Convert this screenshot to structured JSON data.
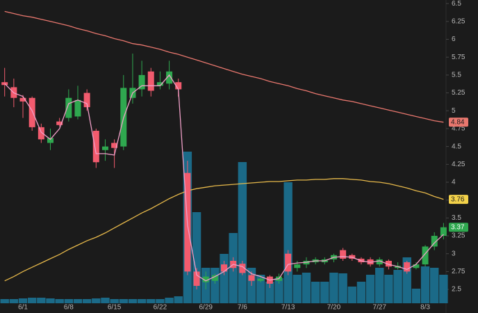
{
  "chart_data": {
    "type": "candlestick",
    "categories": [
      null,
      null,
      "6/1",
      null,
      null,
      null,
      null,
      "6/8",
      null,
      null,
      null,
      null,
      "6/15",
      null,
      null,
      null,
      null,
      "6/22",
      null,
      null,
      null,
      null,
      "6/29",
      null,
      null,
      null,
      "7/6",
      null,
      null,
      null,
      null,
      "7/13",
      null,
      null,
      null,
      null,
      "7/20",
      null,
      null,
      null,
      null,
      "7/27",
      null,
      null,
      null,
      null,
      "8/3",
      null,
      null
    ],
    "open": [
      5.4,
      5.33,
      5.18,
      5.18,
      4.77,
      4.55,
      4.85,
      4.9,
      4.92,
      5.25,
      4.72,
      4.45,
      4.55,
      4.5,
      5.18,
      5.3,
      5.55,
      5.35,
      5.38,
      5.4,
      4.13,
      2.75,
      2.6,
      2.62,
      2.85,
      2.9,
      2.86,
      2.7,
      2.62,
      2.68,
      2.62,
      3.0,
      2.8,
      2.85,
      2.88,
      2.88,
      2.92,
      3.05,
      2.98,
      2.93,
      2.92,
      2.85,
      2.9,
      2.8,
      2.88,
      2.8,
      2.85,
      3.1,
      3.25
    ],
    "high": [
      5.6,
      5.45,
      5.22,
      5.2,
      4.82,
      4.75,
      4.9,
      5.3,
      5.35,
      5.3,
      4.75,
      4.6,
      4.6,
      5.5,
      5.8,
      5.7,
      5.6,
      5.55,
      5.7,
      5.45,
      4.3,
      2.8,
      2.75,
      2.72,
      2.9,
      2.95,
      2.9,
      2.75,
      2.7,
      2.7,
      2.72,
      3.05,
      2.9,
      2.95,
      2.95,
      2.95,
      3.0,
      3.08,
      3.0,
      2.95,
      2.95,
      2.95,
      2.92,
      2.88,
      2.9,
      2.88,
      3.12,
      3.3,
      3.43
    ],
    "low": [
      5.2,
      5.05,
      4.9,
      4.72,
      4.55,
      4.45,
      4.78,
      4.85,
      4.88,
      5.0,
      4.2,
      4.3,
      4.2,
      4.45,
      5.1,
      5.2,
      5.2,
      5.3,
      5.3,
      5.2,
      2.7,
      2.5,
      2.5,
      2.58,
      2.7,
      2.75,
      2.7,
      2.55,
      2.6,
      2.52,
      2.58,
      2.7,
      2.75,
      2.8,
      2.85,
      2.85,
      2.88,
      2.9,
      2.9,
      2.85,
      2.82,
      2.82,
      2.78,
      2.78,
      2.72,
      2.78,
      2.82,
      3.05,
      3.2
    ],
    "close": [
      5.36,
      5.18,
      5.13,
      4.77,
      4.6,
      4.62,
      4.8,
      5.18,
      5.15,
      5.05,
      4.28,
      4.5,
      4.48,
      5.32,
      5.32,
      5.5,
      5.28,
      5.4,
      5.55,
      5.3,
      2.75,
      2.55,
      2.68,
      2.7,
      2.75,
      2.8,
      2.73,
      2.62,
      2.65,
      2.58,
      2.68,
      2.75,
      2.85,
      2.9,
      2.92,
      2.92,
      2.98,
      2.93,
      2.93,
      2.88,
      2.85,
      2.92,
      2.82,
      2.83,
      2.75,
      2.85,
      3.1,
      3.25,
      3.37
    ],
    "up_color": "#2fa84f",
    "down_color": "#f25b6e",
    "volume": {
      "color": "#1b6a88",
      "values": [
        6,
        6,
        7,
        8,
        8,
        7,
        6,
        6,
        6,
        6,
        7,
        8,
        6,
        6,
        6,
        6,
        6,
        6,
        8,
        10,
        218,
        131,
        51,
        51,
        71,
        101,
        203,
        51,
        41,
        31,
        36,
        174,
        41,
        44,
        31,
        31,
        44,
        43,
        24,
        31,
        41,
        51,
        41,
        48,
        66,
        21,
        53,
        51,
        41
      ]
    },
    "overlays": [
      {
        "color": "#e8776e",
        "values": [
          6.39,
          6.36,
          6.33,
          6.31,
          6.28,
          6.25,
          6.22,
          6.19,
          6.15,
          6.12,
          6.08,
          6.05,
          6.01,
          5.98,
          5.94,
          5.92,
          5.89,
          5.86,
          5.82,
          5.79,
          5.75,
          5.71,
          5.67,
          5.63,
          5.59,
          5.55,
          5.51,
          5.48,
          5.45,
          5.41,
          5.38,
          5.35,
          5.31,
          5.28,
          5.24,
          5.21,
          5.18,
          5.15,
          5.13,
          5.1,
          5.07,
          5.04,
          5.01,
          4.98,
          4.95,
          4.92,
          4.89,
          4.86,
          4.84
        ]
      },
      {
        "color": "#e6b84a",
        "values": [
          2.62,
          2.68,
          2.75,
          2.81,
          2.87,
          2.93,
          2.99,
          3.06,
          3.12,
          3.18,
          3.23,
          3.29,
          3.36,
          3.43,
          3.5,
          3.57,
          3.63,
          3.7,
          3.77,
          3.83,
          3.88,
          3.91,
          3.93,
          3.95,
          3.96,
          3.97,
          3.98,
          3.99,
          4.0,
          4.01,
          4.01,
          4.02,
          4.03,
          4.03,
          4.04,
          4.04,
          4.05,
          4.05,
          4.04,
          4.03,
          4.01,
          4.0,
          3.98,
          3.95,
          3.92,
          3.88,
          3.85,
          3.8,
          3.76
        ]
      },
      {
        "color": "#f0a0c8",
        "values": [
          5.38,
          5.25,
          5.2,
          5.0,
          4.7,
          4.6,
          4.75,
          5.1,
          5.15,
          5.1,
          4.4,
          4.4,
          4.38,
          4.9,
          5.25,
          5.35,
          5.35,
          5.35,
          5.5,
          5.3,
          3.4,
          2.7,
          2.62,
          2.68,
          2.75,
          2.85,
          2.82,
          2.72,
          2.68,
          2.63,
          2.65,
          2.85,
          2.87,
          2.88,
          2.9,
          2.9,
          2.95,
          2.96,
          2.95,
          2.9,
          2.88,
          2.9,
          2.85,
          2.82,
          2.78,
          2.85,
          3.0,
          3.15,
          3.27
        ]
      }
    ],
    "ylim": [
      2.17,
      6.55
    ],
    "yticks": [
      6.5,
      6.25,
      6,
      5.75,
      5.5,
      5.25,
      5,
      4.75,
      4.5,
      4.25,
      4,
      3.75,
      3.5,
      3.25,
      3,
      2.75,
      2.5
    ]
  }
}
